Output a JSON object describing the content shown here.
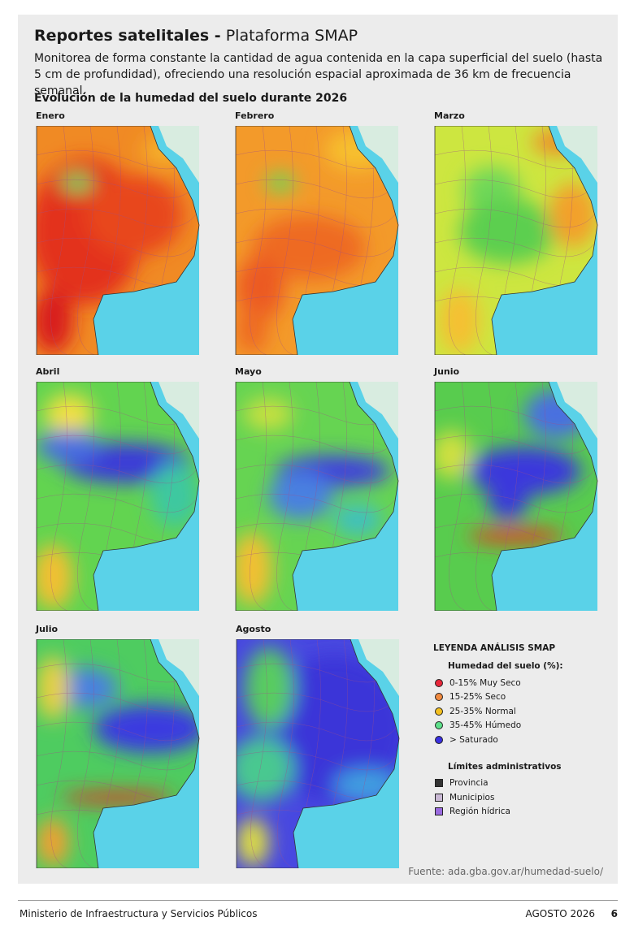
{
  "header": {
    "title": "Reportes satelitales -",
    "subtitle": "Plataforma SMAP"
  },
  "description": "Monitorea de forma constante la cantidad de agua contenida en la capa superficial del suelo (hasta 5 cm de profundidad), ofreciendo una resolución espacial aproximada de 36 km de frecuencia semanal.",
  "section_title": "Evolución de la humedad del suelo durante 2026",
  "maps": [
    {
      "label": "Enero"
    },
    {
      "label": "Febrero"
    },
    {
      "label": "Marzo"
    },
    {
      "label": "Abril"
    },
    {
      "label": "Mayo"
    },
    {
      "label": "Junio"
    },
    {
      "label": "Julio"
    },
    {
      "label": "Agosto"
    }
  ],
  "legend": {
    "title": "LEYENDA ANÁLISIS SMAP",
    "humidity_title": "Humedad del suelo (%):",
    "humidity_items": [
      {
        "label": "0-15% Muy Seco",
        "color": "#e8273a"
      },
      {
        "label": "15-25% Seco",
        "color": "#f08a40"
      },
      {
        "label": "25-35% Normal",
        "color": "#f4c020"
      },
      {
        "label": "35-45% Húmedo",
        "color": "#5ee08a"
      },
      {
        "label": "> Saturado",
        "color": "#3a30e0"
      }
    ],
    "admin_title": "Límites administrativos",
    "admin_items": [
      {
        "label": "Provincia",
        "color": "#333333"
      },
      {
        "label": "Municipios",
        "color": "#c9b8d4"
      },
      {
        "label": "Región hídrica",
        "color": "#9a6ae0"
      }
    ]
  },
  "source": "Fuente: ada.gba.gov.ar/humedad-suelo/",
  "footer": {
    "left": "Ministerio de Infraestructura y Servicios Públicos",
    "date": "AGOSTO 2026",
    "page": "6"
  }
}
